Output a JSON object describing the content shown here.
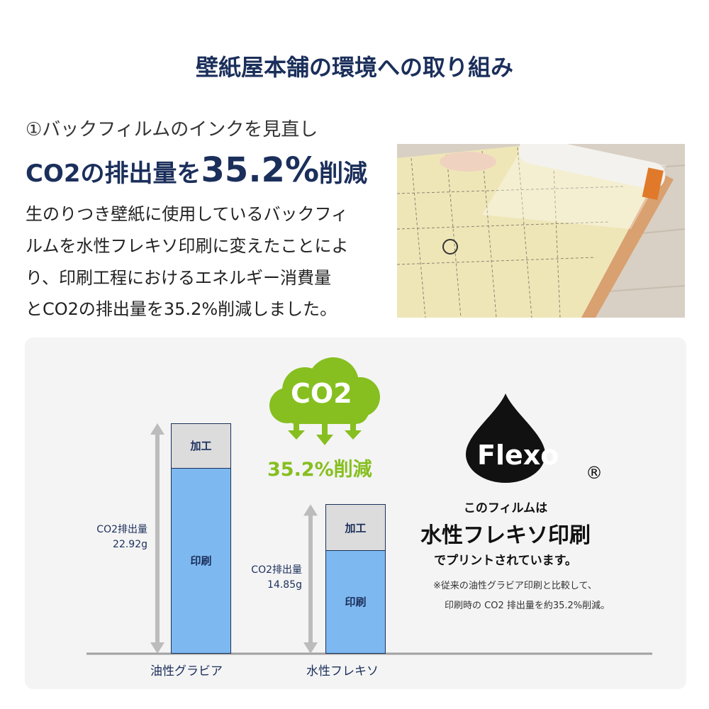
{
  "title": "壁紙屋本舗の環境への取り組み",
  "section": {
    "subtitle": "①バックフィルムのインクを見直し",
    "headline_prefix": "CO2の排出量を",
    "headline_value": "35.2%",
    "headline_suffix": "削減",
    "body": [
      "生のりつき壁紙に使用しているバックフィ",
      "ルムを水性フレキソ印刷に変えたことによ",
      "り、印刷工程におけるエネルギー消費量",
      "とCO2の排出量を35.2%削減しました。"
    ]
  },
  "infographic": {
    "cloud_label": "CO2",
    "reduction": "35.2%削減",
    "flexo_logo": "Flexo",
    "registered": "®",
    "film_line1": "このフィルムは",
    "film_line2": "水性フレキソ印刷",
    "film_line3": "でプリントされています。",
    "note_line1": "※従来の油性グラビア印刷と比較して、",
    "note_line2": "印刷時の CO2 排出量を約35.2%削減。",
    "colors": {
      "navy": "#1b2f5b",
      "green": "#86bf1f",
      "print": "#7db9f0",
      "process": "#dcdcdc"
    }
  },
  "chart_data": {
    "type": "bar",
    "stacked": true,
    "categories": [
      "油性グラビア",
      "水性フレキソ"
    ],
    "totals": [
      22.92,
      14.85
    ],
    "total_labels": [
      [
        "CO2排出量",
        "22.92g"
      ],
      [
        "CO2排出量",
        "14.85g"
      ]
    ],
    "segments": [
      "印刷",
      "加工"
    ],
    "process_share": [
      0.19,
      0.3
    ]
  }
}
